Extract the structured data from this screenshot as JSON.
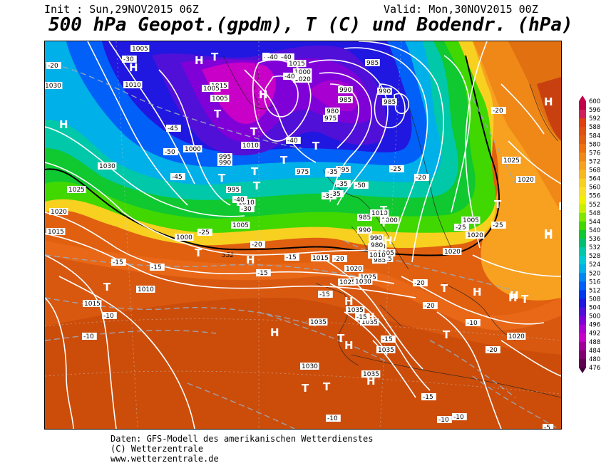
{
  "header": {
    "init": "Init : Sun,29NOV2015 06Z",
    "valid": "Valid: Mon,30NOV2015 00Z",
    "title": "500 hPa Geopot.(gpdm), T (C) und Bodendr. (hPa)"
  },
  "footer": {
    "line1": "Daten: GFS-Modell des amerikanischen Wetterdienstes",
    "line2": "(C) Wetterzentrale",
    "line3": "www.wetterzentrale.de"
  },
  "legend": {
    "levels": [
      "600",
      "596",
      "592",
      "588",
      "584",
      "580",
      "576",
      "572",
      "568",
      "564",
      "560",
      "556",
      "552",
      "548",
      "544",
      "540",
      "536",
      "532",
      "528",
      "524",
      "520",
      "516",
      "512",
      "508",
      "504",
      "500",
      "496",
      "492",
      "488",
      "484",
      "480",
      "476"
    ],
    "colors": [
      "#c0004a",
      "#d0205a",
      "#e04010",
      "#e05010",
      "#e06010",
      "#f07010",
      "#f08818",
      "#f8a020",
      "#f8b820",
      "#f8d020",
      "#f8e028",
      "#f0f000",
      "#c8f000",
      "#80e800",
      "#40d800",
      "#10c830",
      "#00c070",
      "#00c8a8",
      "#00c8d8",
      "#00b0e8",
      "#0088f0",
      "#0060f8",
      "#0038f0",
      "#2018e0",
      "#5010d8",
      "#8000d8",
      "#a800d0",
      "#c800c8",
      "#a00098",
      "#800070",
      "#600050",
      "#400038"
    ]
  },
  "pressure_labels": [
    "1005",
    "1015",
    "985",
    "1000",
    "1020",
    "1015",
    "1010",
    "1005",
    "1005",
    "990",
    "1030",
    "985",
    "990",
    "985",
    "980",
    "975",
    "1010",
    "1000",
    "995",
    "990",
    "995",
    "975",
    "1030",
    "995",
    "1025",
    "1020",
    "1010",
    "1000",
    "1005",
    "1015",
    "985",
    "990",
    "1000",
    "1010",
    "1005",
    "1015",
    "985",
    "980",
    "990",
    "1025",
    "1020",
    "1010",
    "1015",
    "1010",
    "1005",
    "1020",
    "1025",
    "1030",
    "1035",
    "1035",
    "1035",
    "1035",
    "1030",
    "1035",
    "1020",
    "1020",
    "1020",
    "1025",
    "1015",
    "1010"
  ],
  "temp_labels": [
    "-20",
    "-30",
    "-40",
    "-40",
    "-40",
    "-40",
    "-45",
    "-50",
    "-45",
    "-40",
    "-35",
    "-30",
    "-25",
    "-20",
    "-35",
    "-50",
    "-35",
    "-30",
    "-35",
    "-40",
    "-25",
    "-20",
    "-25",
    "-20",
    "-15",
    "-15",
    "-15",
    "-10",
    "-10",
    "-15",
    "-20",
    "-15",
    "-20",
    "-15",
    "-10",
    "-10",
    "-15",
    "-10",
    "-20",
    "-20",
    "-25",
    "-15",
    "-10",
    "-5"
  ],
  "centers": [
    "H",
    "H",
    "H",
    "T",
    "T",
    "H",
    "T",
    "T",
    "T",
    "T",
    "T",
    "T",
    "T",
    "T",
    "H",
    "H",
    "T",
    "H",
    "H",
    "T",
    "T",
    "H",
    "H",
    "H",
    "T",
    "H",
    "H",
    "T",
    "T",
    "H",
    "T",
    "T",
    "H",
    "H",
    "H",
    "H",
    "T",
    "T"
  ],
  "contour_label_552": "552"
}
